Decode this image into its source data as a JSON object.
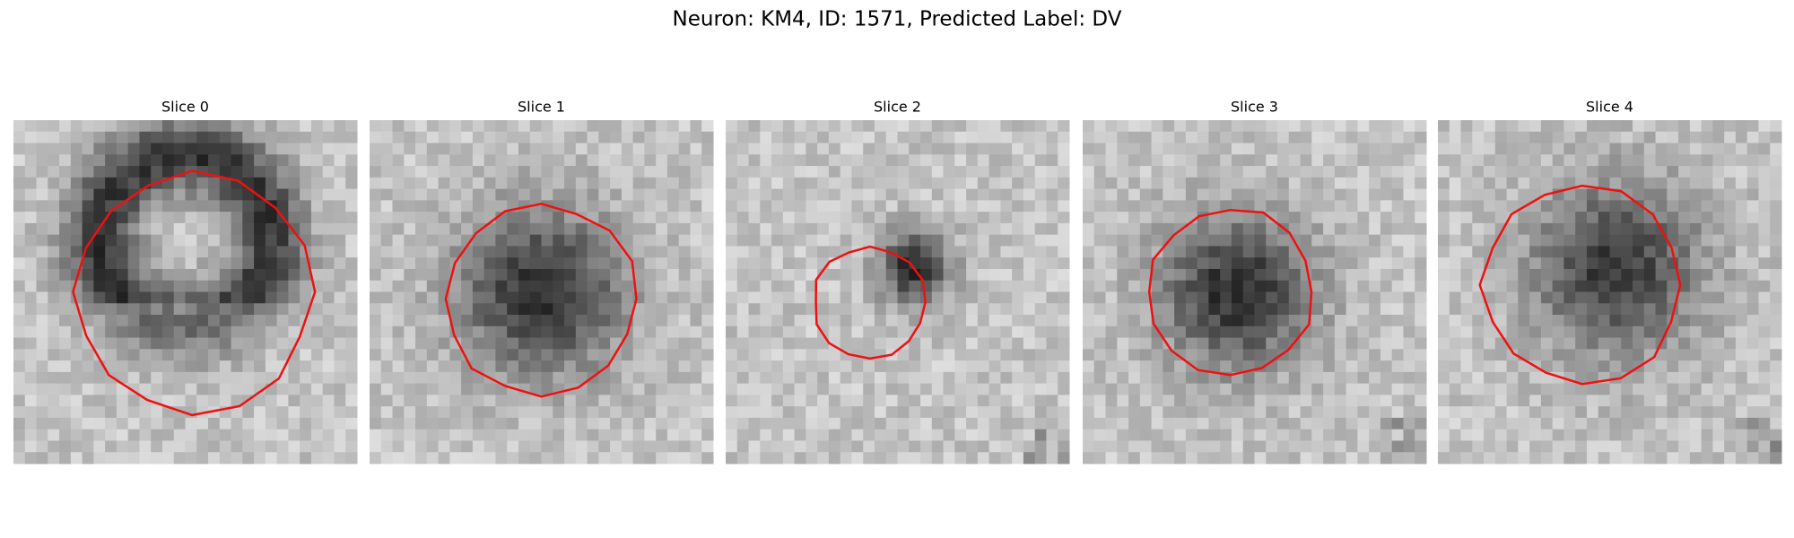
{
  "title": "Neuron: KM4, ID: 1571, Predicted Label: DV",
  "panels": [
    {
      "title": "Slice 0"
    },
    {
      "title": "Slice 1"
    },
    {
      "title": "Slice 2"
    },
    {
      "title": "Slice 3"
    },
    {
      "title": "Slice 4"
    }
  ]
}
